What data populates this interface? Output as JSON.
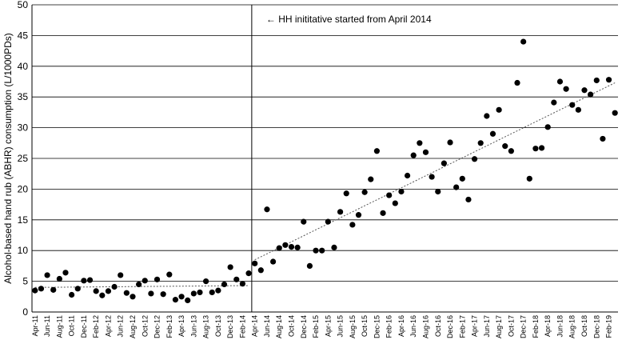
{
  "chart_data": {
    "type": "scatter",
    "ylabel": "Alcohol-based hand rub (ABHR) consumption (L/1000PDs)",
    "xlabel": "",
    "title": "",
    "ylim": [
      0,
      50
    ],
    "yticks": [
      0,
      5,
      10,
      15,
      20,
      25,
      30,
      35,
      40,
      45,
      50
    ],
    "grid": "horizontal",
    "legend": "none",
    "x_tick_labels": [
      "Apr-11",
      "Jun-11",
      "Aug-11",
      "Oct-11",
      "Dec-11",
      "Feb-12",
      "Apr-12",
      "Jun-12",
      "Aug-12",
      "Oct-12",
      "Dec-12",
      "Feb-13",
      "Apr-13",
      "Jun-13",
      "Aug-13",
      "Oct-13",
      "Dec-13",
      "Feb-14",
      "Apr-14",
      "Jun-14",
      "Aug-14",
      "Oct-14",
      "Dec-14",
      "Feb-15",
      "Apr-15",
      "Jun-15",
      "Aug-15",
      "Oct-15",
      "Dec-15",
      "Feb-16",
      "Apr-16",
      "Jun-16",
      "Aug-16",
      "Oct-16",
      "Dec-16",
      "Feb-17",
      "Apr-17",
      "Jun-17",
      "Aug-17",
      "Oct-17",
      "Dec-17",
      "Feb-18",
      "Apr-18",
      "Jun-18",
      "Aug-18",
      "Oct-18",
      "Dec-18",
      "Feb-19"
    ],
    "x_start": "Apr-11",
    "values": [
      3.5,
      3.8,
      6.0,
      3.6,
      5.4,
      6.4,
      2.8,
      3.8,
      5.1,
      5.2,
      3.4,
      2.7,
      3.4,
      4.1,
      6.0,
      3.1,
      2.5,
      4.5,
      5.1,
      3.0,
      5.3,
      2.9,
      6.1,
      2.0,
      2.5,
      1.9,
      3.0,
      3.2,
      5.0,
      3.2,
      3.5,
      4.5,
      7.3,
      5.3,
      4.6,
      6.3,
      7.9,
      6.8,
      16.7,
      8.2,
      10.4,
      10.9,
      10.6,
      10.5,
      14.7,
      7.5,
      10.0,
      10.0,
      14.7,
      10.5,
      16.3,
      19.3,
      14.2,
      15.8,
      19.5,
      21.6,
      26.2,
      16.1,
      19.0,
      17.7,
      19.6,
      22.2,
      25.5,
      27.5,
      26.0,
      22.0,
      19.6,
      24.2,
      27.6,
      20.3,
      21.7,
      18.3,
      24.9,
      27.5,
      31.9,
      29.0,
      32.9,
      27.0,
      26.2,
      37.3,
      44.0,
      21.7,
      26.6,
      26.7,
      30.1,
      34.1,
      37.5,
      36.3,
      33.7,
      32.9,
      36.1,
      35.4,
      37.7,
      28.2,
      37.8,
      32.4
    ],
    "intervention": {
      "at": "Apr-14",
      "label": "← HH inititative started from April 2014"
    },
    "trend_pre": {
      "from": "Apr-11",
      "to": "Mar-14",
      "start": 4.0,
      "end": 4.3
    },
    "trend_post": {
      "from": "Apr-14",
      "to": "Mar-19",
      "start": 8.5,
      "end": 37.3
    },
    "colors": {
      "points": "#000000",
      "grid": "#000000",
      "trend": "#555555"
    }
  }
}
